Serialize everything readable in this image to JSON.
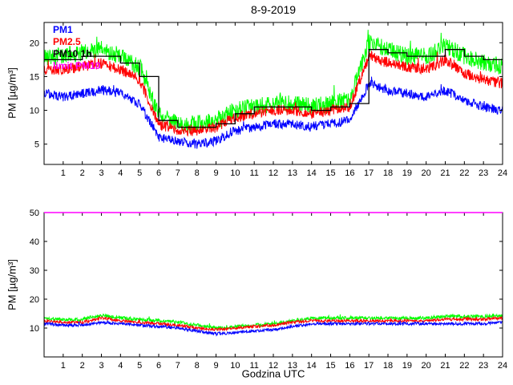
{
  "title": "8-9-2019",
  "legend": {
    "items": [
      {
        "label": "PM1",
        "color": "#0000ff"
      },
      {
        "label": "PM2.5",
        "color": "#ff0000"
      },
      {
        "label": "PM10 1h",
        "color": "#000000"
      },
      {
        "label": "limit PM10",
        "color": "#ff00ff"
      }
    ]
  },
  "chart_data": [
    {
      "type": "line",
      "title": "8-9-2019",
      "xlabel": "",
      "ylabel": "PM [µg/m³]",
      "xlim": [
        0,
        24
      ],
      "ylim": [
        2,
        23
      ],
      "xticks": [
        1,
        2,
        3,
        4,
        5,
        6,
        7,
        8,
        9,
        10,
        11,
        12,
        13,
        14,
        15,
        16,
        17,
        18,
        19,
        20,
        21,
        22,
        23,
        24
      ],
      "yticks": [
        5,
        10,
        15,
        20
      ],
      "grid": false,
      "legend_position": "top-left-text-annotations",
      "series": [
        {
          "name": "PM10",
          "color": "#00ff00",
          "style": "noisy",
          "noise": 1.3,
          "hourly": [
            18,
            18,
            18.5,
            19,
            18,
            16.5,
            9.5,
            8,
            8,
            8.5,
            10,
            10.5,
            11,
            11,
            10.5,
            11,
            11.5,
            20,
            19,
            18,
            18,
            19.5,
            18,
            17,
            16.5
          ]
        },
        {
          "name": "PM2.5",
          "color": "#ff0000",
          "style": "noisy",
          "noise": 0.8,
          "hourly": [
            16,
            16,
            16.5,
            17,
            16,
            14.5,
            8,
            7,
            7,
            7.5,
            9,
            9.5,
            10,
            10,
            9.5,
            10,
            10.5,
            18,
            17,
            16.5,
            16,
            17.5,
            15.5,
            14.5,
            14
          ]
        },
        {
          "name": "PM1",
          "color": "#0000ff",
          "style": "noisy",
          "noise": 0.7,
          "hourly": [
            12.5,
            12,
            12.5,
            13,
            12.5,
            11,
            6,
            5.5,
            5,
            5.5,
            7,
            7.5,
            8,
            8,
            7.5,
            8,
            8.5,
            14,
            13,
            12.5,
            12,
            13,
            11.5,
            10.5,
            10
          ]
        },
        {
          "name": "PM10 1h",
          "color": "#000000",
          "style": "step",
          "hourly": [
            17.5,
            17.5,
            18,
            18,
            17,
            15,
            8.5,
            7.5,
            7.5,
            8,
            9.5,
            10.5,
            10.5,
            10.5,
            10,
            10.5,
            11,
            19,
            18.5,
            18,
            18,
            19,
            18,
            17.5
          ]
        }
      ]
    },
    {
      "type": "line",
      "title": "",
      "xlabel": "Godzina UTC",
      "ylabel": "PM [µg/m³]",
      "xlim": [
        0,
        24
      ],
      "ylim": [
        0,
        50
      ],
      "xticks": [
        1,
        2,
        3,
        4,
        5,
        6,
        7,
        8,
        9,
        10,
        11,
        12,
        13,
        14,
        15,
        16,
        17,
        18,
        19,
        20,
        21,
        22,
        23,
        24
      ],
      "yticks": [
        10,
        20,
        30,
        40,
        50
      ],
      "grid": false,
      "series": [
        {
          "name": "PM10",
          "color": "#00ff00",
          "style": "noisy",
          "noise": 0.6,
          "hourly": [
            13.5,
            13,
            13,
            14.5,
            13.5,
            13,
            12.5,
            12,
            11,
            10,
            10.5,
            11,
            11.5,
            12.5,
            13.5,
            13.5,
            13.5,
            13.5,
            13.5,
            13.5,
            13.5,
            14,
            14,
            14,
            14.5
          ]
        },
        {
          "name": "PM2.5",
          "color": "#ff0000",
          "style": "noisy",
          "noise": 0.5,
          "hourly": [
            12.5,
            12,
            12,
            13.5,
            12.5,
            12,
            11.5,
            11,
            10,
            9.5,
            10,
            10.5,
            11,
            12,
            12.5,
            12.5,
            12.5,
            12.5,
            12.5,
            12.5,
            12.5,
            13,
            13,
            13,
            13.5
          ]
        },
        {
          "name": "PM1",
          "color": "#0000ff",
          "style": "noisy",
          "noise": 0.5,
          "hourly": [
            11.5,
            11,
            11,
            12,
            11.5,
            11,
            10.5,
            10,
            9,
            8,
            8.5,
            9,
            9.5,
            10.5,
            11.5,
            11.5,
            11.5,
            11.5,
            11.5,
            11.5,
            11.5,
            11.5,
            11.5,
            11.5,
            12
          ]
        },
        {
          "name": "limit PM10",
          "color": "#ff00ff",
          "style": "constant",
          "value": 50
        }
      ]
    }
  ]
}
